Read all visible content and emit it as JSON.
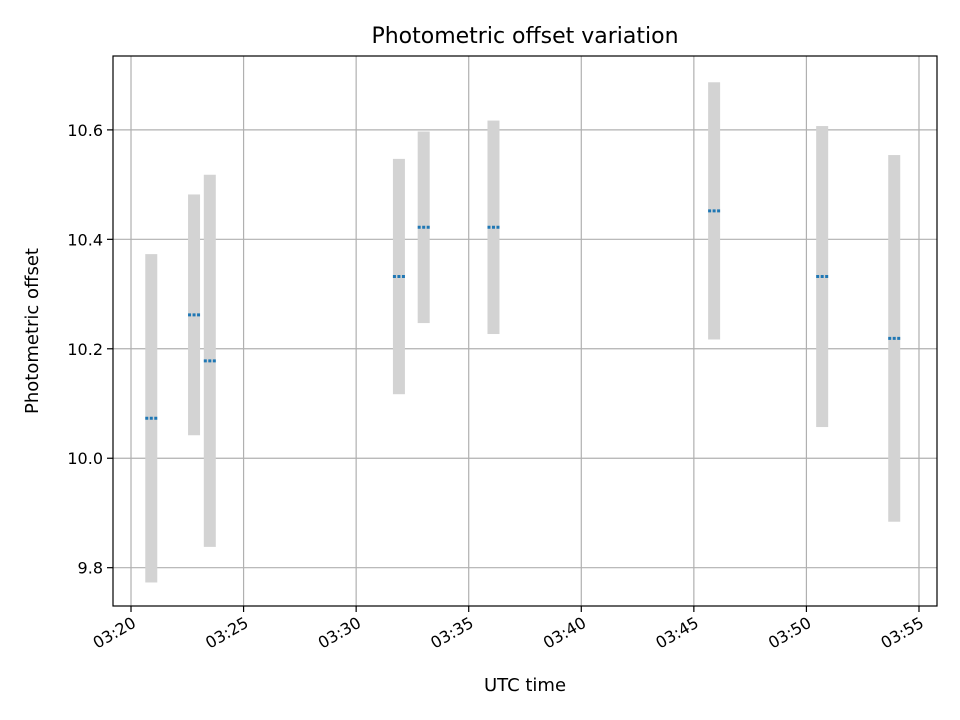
{
  "chart_data": {
    "type": "scatter",
    "title": "Photometric offset variation",
    "xlabel": "UTC time",
    "ylabel": "Photometric offset",
    "x_tick_labels": [
      "03:20",
      "03:25",
      "03:30",
      "03:35",
      "03:40",
      "03:45",
      "03:50",
      "03:55"
    ],
    "x_tick_minutes": [
      200,
      205,
      210,
      215,
      220,
      225,
      230,
      235
    ],
    "xlim": [
      "03:19.2",
      "03:55.8"
    ],
    "y_ticks": [
      9.8,
      10.0,
      10.2,
      10.4,
      10.6
    ],
    "y_tick_labels": [
      "9.8",
      "10.0",
      "10.2",
      "10.4",
      "10.6"
    ],
    "ylim": [
      9.73,
      10.735
    ],
    "grid": true,
    "point_color": "#1f77b4",
    "errorbar_color": "#d3d3d3",
    "series": [
      {
        "points": [
          {
            "time": "03:20.9",
            "y": 10.073,
            "err": 0.3
          },
          {
            "time": "03:22.8",
            "y": 10.262,
            "err": 0.22
          },
          {
            "time": "03:23.5",
            "y": 10.178,
            "err": 0.34
          },
          {
            "time": "03:31.9",
            "y": 10.332,
            "err": 0.215
          },
          {
            "time": "03:33.0",
            "y": 10.422,
            "err": 0.175
          },
          {
            "time": "03:36.1",
            "y": 10.422,
            "err": 0.195
          },
          {
            "time": "03:45.9",
            "y": 10.452,
            "err": 0.235
          },
          {
            "time": "03:50.7",
            "y": 10.332,
            "err": 0.275
          },
          {
            "time": "03:53.9",
            "y": 10.219,
            "err": 0.335
          }
        ]
      }
    ]
  }
}
